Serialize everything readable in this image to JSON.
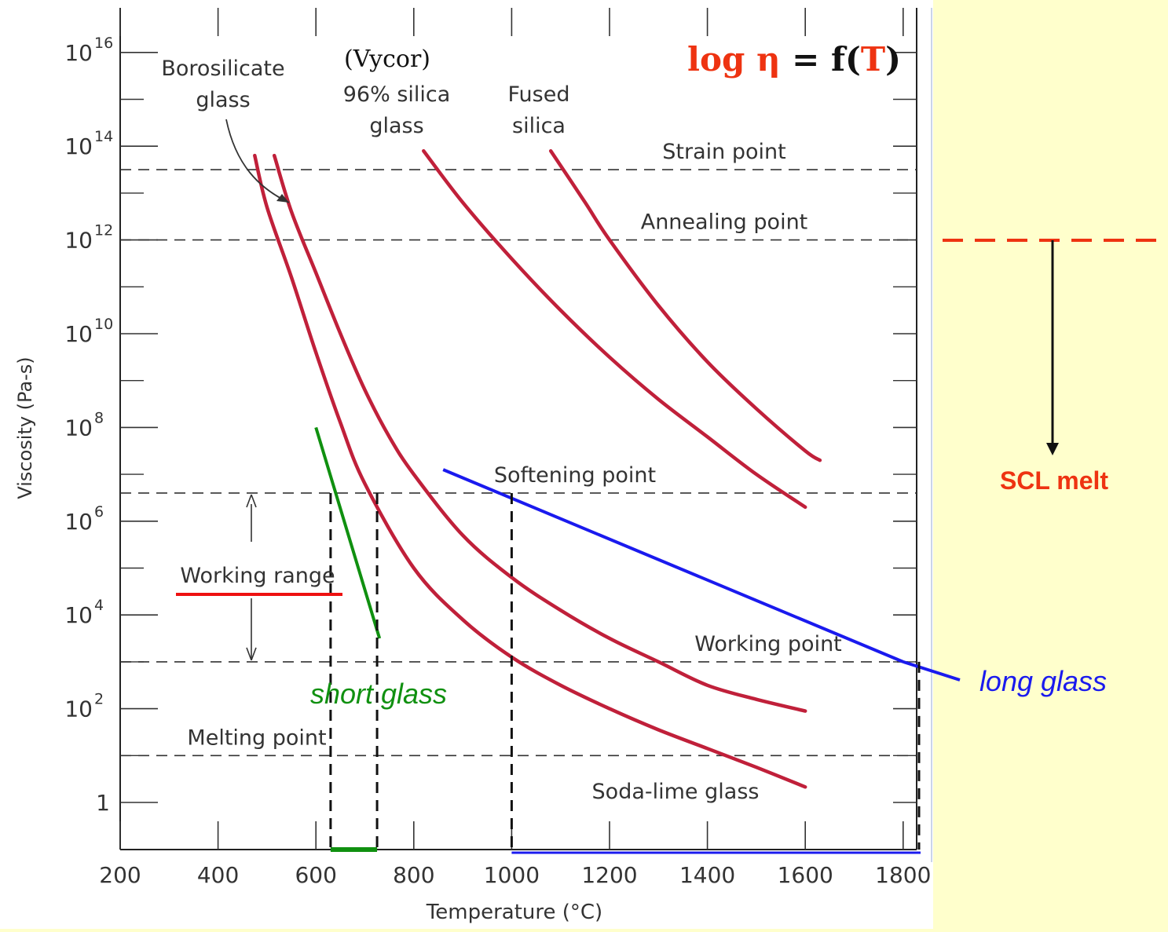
{
  "chart_data": {
    "type": "line",
    "title": "",
    "formula": {
      "prefix": "log ",
      "eta": "η",
      "eq": " = f(",
      "T": "T",
      "close": ")"
    },
    "xlabel": "Temperature (°C)",
    "ylabel": "Viscosity (Pa-s)",
    "xlim": [
      200,
      1800
    ],
    "ylim_log10": [
      -1,
      17
    ],
    "y_scale": "log",
    "grid": false,
    "x_ticks": [
      {
        "v": 200,
        "label": "200"
      },
      {
        "v": 400,
        "label": "400"
      },
      {
        "v": 600,
        "label": "600"
      },
      {
        "v": 800,
        "label": "800"
      },
      {
        "v": 1000,
        "label": "1000"
      },
      {
        "v": 1200,
        "label": "1200"
      },
      {
        "v": 1400,
        "label": "1400"
      },
      {
        "v": 1600,
        "label": "1600"
      },
      {
        "v": 1800,
        "label": "1800"
      }
    ],
    "y_ticks": [
      {
        "v": 0,
        "base": "1",
        "exp": ""
      },
      {
        "v": 2,
        "base": "10",
        "exp": "2"
      },
      {
        "v": 4,
        "base": "10",
        "exp": "4"
      },
      {
        "v": 6,
        "base": "10",
        "exp": "6"
      },
      {
        "v": 8,
        "base": "10",
        "exp": "8"
      },
      {
        "v": 10,
        "base": "10",
        "exp": "10"
      },
      {
        "v": 12,
        "base": "10",
        "exp": "12"
      },
      {
        "v": 14,
        "base": "10",
        "exp": "14"
      },
      {
        "v": 16,
        "base": "10",
        "exp": "16"
      }
    ],
    "reference_lines": [
      {
        "label": "Strain point",
        "log_eta": 13.5
      },
      {
        "label": "Annealing point",
        "log_eta": 12.0
      },
      {
        "label": "Softening point",
        "log_eta": 6.6
      },
      {
        "label": "Working point",
        "log_eta": 3.0
      },
      {
        "label": "Melting point",
        "log_eta": 1.0
      }
    ],
    "series": [
      {
        "name": "Soda-lime glass",
        "color": "#c0203a",
        "points": [
          [
            475,
            13.8
          ],
          [
            500,
            12.7
          ],
          [
            550,
            11.2
          ],
          [
            600,
            9.6
          ],
          [
            650,
            8.1
          ],
          [
            700,
            6.8
          ],
          [
            800,
            5.0
          ],
          [
            900,
            3.9
          ],
          [
            1000,
            3.1
          ],
          [
            1100,
            2.5
          ],
          [
            1200,
            2.0
          ],
          [
            1300,
            1.55
          ],
          [
            1400,
            1.15
          ],
          [
            1500,
            0.75
          ],
          [
            1600,
            0.33
          ]
        ]
      },
      {
        "name": "Borosilicate glass",
        "color": "#c0203a",
        "points": [
          [
            515,
            13.8
          ],
          [
            550,
            12.6
          ],
          [
            600,
            11.3
          ],
          [
            650,
            10.0
          ],
          [
            700,
            8.8
          ],
          [
            750,
            7.8
          ],
          [
            800,
            7.0
          ],
          [
            900,
            5.7
          ],
          [
            1000,
            4.8
          ],
          [
            1100,
            4.1
          ],
          [
            1200,
            3.5
          ],
          [
            1300,
            3.0
          ],
          [
            1400,
            2.5
          ],
          [
            1500,
            2.2
          ],
          [
            1600,
            1.95
          ]
        ]
      },
      {
        "name": "96% silica glass",
        "color": "#c0203a",
        "points": [
          [
            820,
            13.9
          ],
          [
            900,
            12.8
          ],
          [
            1000,
            11.6
          ],
          [
            1100,
            10.5
          ],
          [
            1200,
            9.5
          ],
          [
            1300,
            8.6
          ],
          [
            1400,
            7.8
          ],
          [
            1500,
            7.0
          ],
          [
            1600,
            6.3
          ]
        ]
      },
      {
        "name": "Fused silica",
        "color": "#c0203a",
        "points": [
          [
            1080,
            13.9
          ],
          [
            1150,
            12.8
          ],
          [
            1200,
            12.0
          ],
          [
            1300,
            10.6
          ],
          [
            1400,
            9.4
          ],
          [
            1500,
            8.4
          ],
          [
            1600,
            7.5
          ],
          [
            1630,
            7.3
          ]
        ]
      }
    ],
    "overlays": {
      "short_glass": {
        "label": "short glass",
        "color": "#109010",
        "line": [
          [
            600,
            8.0
          ],
          [
            730,
            3.5
          ]
        ],
        "range": [
          630,
          725
        ]
      },
      "long_glass": {
        "label": "long glass",
        "color": "#1a1aee",
        "line": [
          [
            860,
            7.1
          ],
          [
            1800,
            3.0
          ]
        ],
        "range": [
          1000,
          1810
        ]
      },
      "working_range": {
        "label": "Working range",
        "from": 6.6,
        "to": 3.0
      }
    },
    "scl": {
      "label": "SCL melt",
      "color": "#ee3311"
    },
    "curve_labels": {
      "borosilicate": [
        "Borosilicate",
        "glass"
      ],
      "vycor": "(Vycor)",
      "silica96": [
        "96% silica",
        "glass"
      ],
      "fused": [
        "Fused",
        "silica"
      ],
      "sodalime": "Soda-lime glass"
    }
  }
}
